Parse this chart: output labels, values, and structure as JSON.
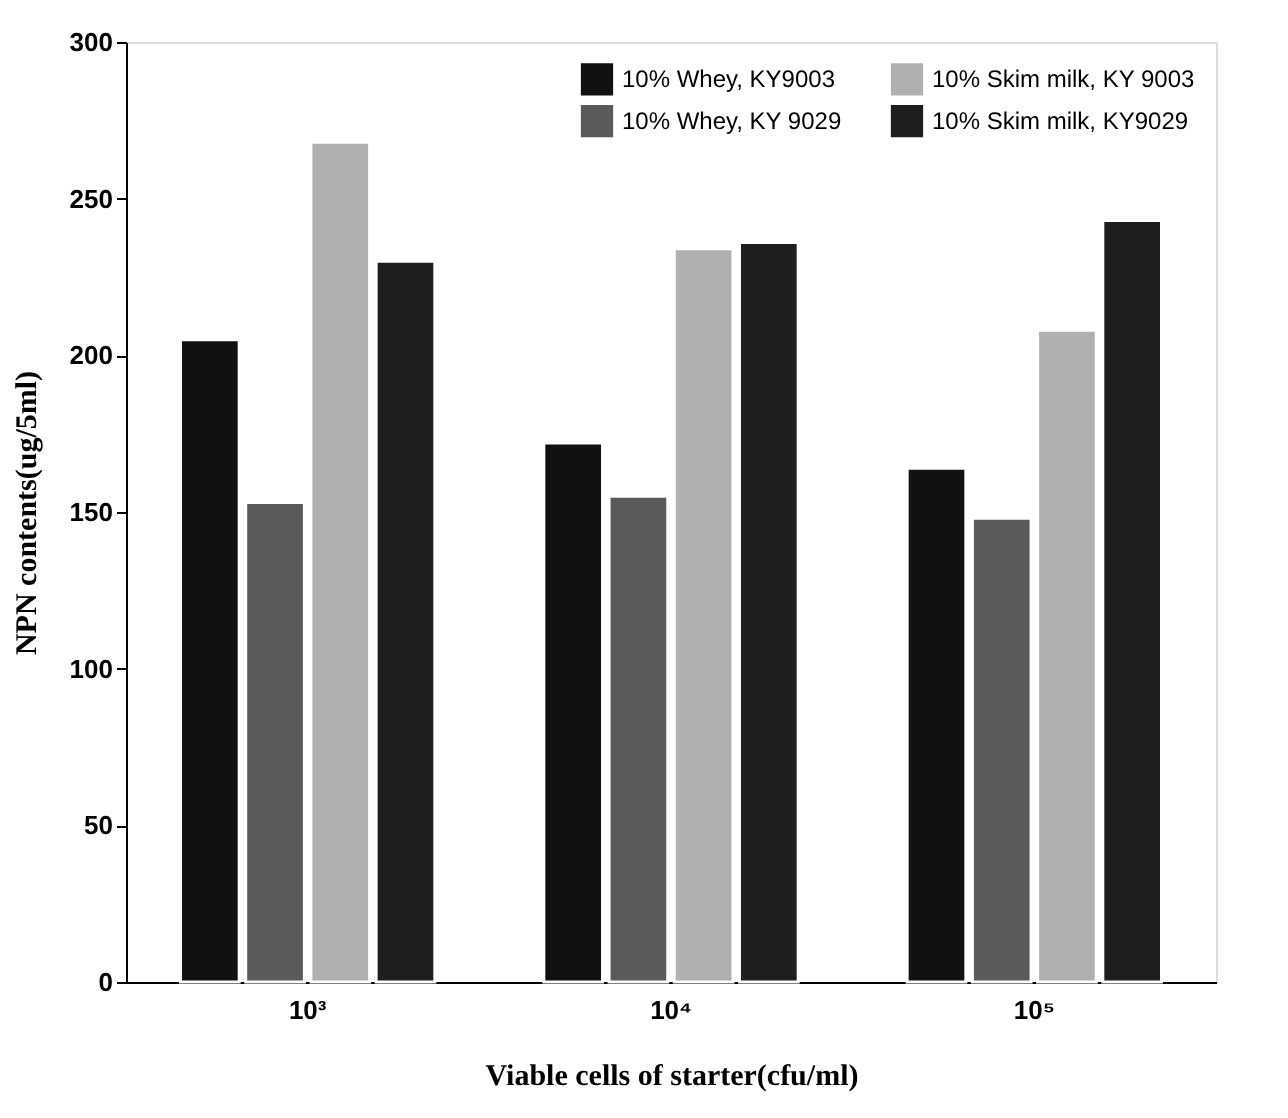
{
  "chart_data": {
    "type": "bar",
    "xlabel": "Viable cells of starter(cfu/ml)",
    "ylabel": "NPN contents(ug/5ml)",
    "categories": [
      "10³",
      "10⁴",
      "10⁵"
    ],
    "series": [
      {
        "name": "10% Whey,  KY9003",
        "color": "#111111",
        "values": [
          205,
          172,
          164
        ]
      },
      {
        "name": "10% Whey,  KY 9029",
        "color": "#5a5a5a",
        "values": [
          153,
          155,
          148
        ]
      },
      {
        "name": "10% Skim milk, KY 9003",
        "color": "#b0b0b0",
        "values": [
          268,
          234,
          208
        ]
      },
      {
        "name": "10% Skim milk, KY9029",
        "color": "#1e1e1e",
        "values": [
          230,
          236,
          243
        ]
      }
    ],
    "ylim": [
      0,
      300
    ],
    "yticks": [
      0,
      50,
      100,
      150,
      200,
      250,
      300
    ],
    "grid": false,
    "legend": "top right"
  }
}
